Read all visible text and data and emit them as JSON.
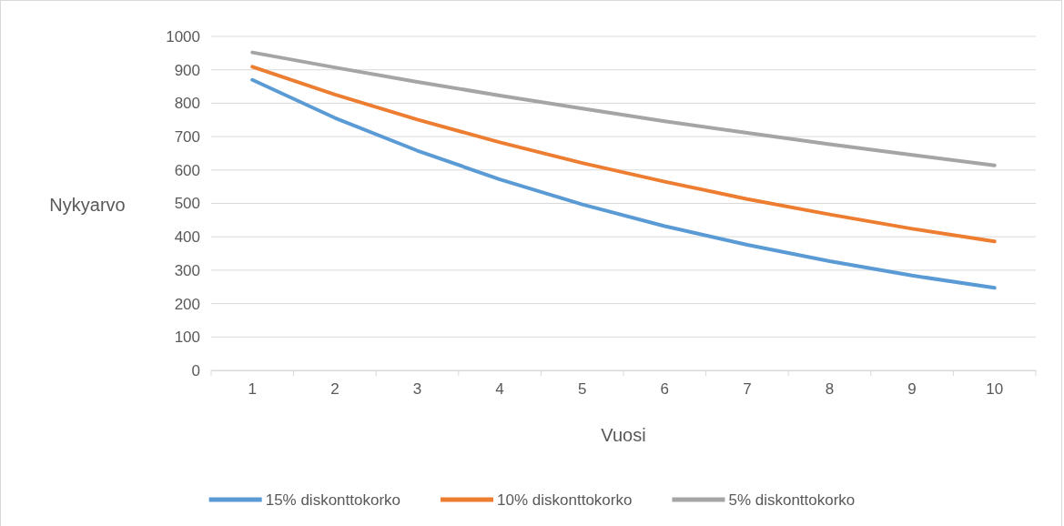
{
  "chart_data": {
    "type": "line",
    "xlabel": "Vuosi",
    "ylabel": "Nykyarvo",
    "categories": [
      "1",
      "2",
      "3",
      "4",
      "5",
      "6",
      "7",
      "8",
      "9",
      "10"
    ],
    "series": [
      {
        "name": "15% diskonttokorko",
        "color": "#5b9bd5",
        "values": [
          870,
          756,
          658,
          572,
          497,
          432,
          376,
          327,
          284,
          247
        ]
      },
      {
        "name": "10% diskonttokorko",
        "color": "#ed7d31",
        "values": [
          909,
          826,
          751,
          683,
          621,
          565,
          513,
          467,
          424,
          386
        ]
      },
      {
        "name": "5% diskonttokorko",
        "color": "#a5a5a5",
        "values": [
          952,
          907,
          864,
          823,
          784,
          746,
          711,
          677,
          645,
          614
        ]
      }
    ],
    "ylim": [
      0,
      1000
    ],
    "yticks": [
      0,
      100,
      200,
      300,
      400,
      500,
      600,
      700,
      800,
      900,
      1000
    ],
    "grid": "y",
    "legend": "bottom",
    "marker": "none",
    "line_style": "solid"
  }
}
